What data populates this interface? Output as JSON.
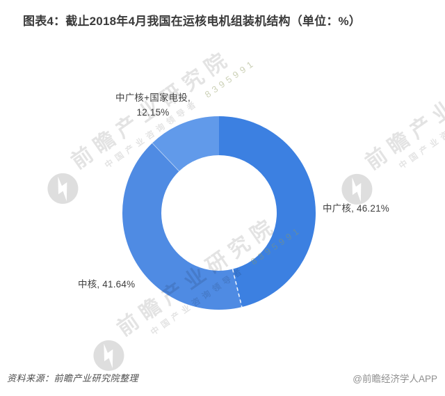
{
  "page": {
    "title": "图表4：截止2018年4月我国在运核电机组装机结构（单位：%）"
  },
  "chart_data": {
    "type": "pie",
    "subtype": "donut",
    "title": "截止2018年4月我国在运核电机组装机结构",
    "unit": "%",
    "categories": [
      "中广核",
      "中核",
      "中广核+国家电投"
    ],
    "values": [
      46.21,
      41.64,
      12.15
    ],
    "colors": [
      "#3c80e1",
      "#4f8be3",
      "#619aea"
    ],
    "labels": [
      "中广核, 46.21%",
      "中核, 41.64%",
      "中广核+国家电投,\n12.15%"
    ],
    "start_angle_deg": 0,
    "direction": "clockwise",
    "inner_radius_ratio": 0.6,
    "legend": "none",
    "label_position": "outside"
  },
  "footer": {
    "source": "资料来源：前瞻产业研究院整理",
    "credit": "@前瞻经济学人APP"
  },
  "watermark": {
    "brand_text": "前瞻产业研究院",
    "sub_text": "中国产业咨询领导者",
    "digits": "8395991"
  }
}
